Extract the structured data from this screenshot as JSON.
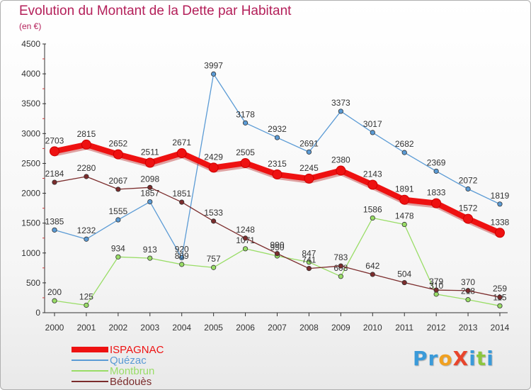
{
  "title": "Evolution du Montant de la Dette par Habitant",
  "unit": "(en €)",
  "logo": {
    "text": "ProXiti",
    "letters": [
      {
        "ch": "P",
        "color": "#3a9ad9"
      },
      {
        "ch": "r",
        "color": "#3a9ad9"
      },
      {
        "ch": "o",
        "color": "#f0a020"
      },
      {
        "ch": "X",
        "color": "#e8452c"
      },
      {
        "ch": "i",
        "color": "#3a9ad9"
      },
      {
        "ch": "t",
        "color": "#8cc63f"
      },
      {
        "ch": "i",
        "color": "#3a9ad9"
      }
    ]
  },
  "chart_data": {
    "type": "line",
    "x": [
      "2000",
      "2001",
      "2002",
      "2003",
      "2004",
      "2005",
      "2006",
      "2007",
      "2008",
      "2009",
      "2010",
      "2011",
      "2012",
      "2013",
      "2014"
    ],
    "ylim": [
      0,
      4500
    ],
    "yticks": [
      0,
      500,
      1000,
      1500,
      2000,
      2500,
      3000,
      3500,
      4000,
      4500
    ],
    "grid": false,
    "legend_position": "bottom-left",
    "series": [
      {
        "name": "ISPAGNAC",
        "color": "#ee1111",
        "values": [
          2703,
          2815,
          2652,
          2511,
          2671,
          2429,
          2505,
          2315,
          2245,
          2380,
          2143,
          1891,
          1833,
          1572,
          1338
        ]
      },
      {
        "name": "Quézac",
        "color": "#5b9bd5",
        "values": [
          1385,
          1232,
          1555,
          1857,
          920,
          3997,
          3178,
          2932,
          2691,
          3373,
          3017,
          2682,
          2369,
          2072,
          1819
        ]
      },
      {
        "name": "Montbrun",
        "color": "#99dd66",
        "values": [
          200,
          125,
          934,
          913,
          809,
          757,
          1071,
          950,
          847,
          608,
          1586,
          1478,
          310,
          218,
          115
        ]
      },
      {
        "name": "Bédouès",
        "color": "#7b2c2c",
        "values": [
          2184,
          2280,
          2067,
          2098,
          1851,
          1533,
          1248,
          990,
          741,
          783,
          642,
          504,
          379,
          370,
          259
        ]
      }
    ]
  }
}
